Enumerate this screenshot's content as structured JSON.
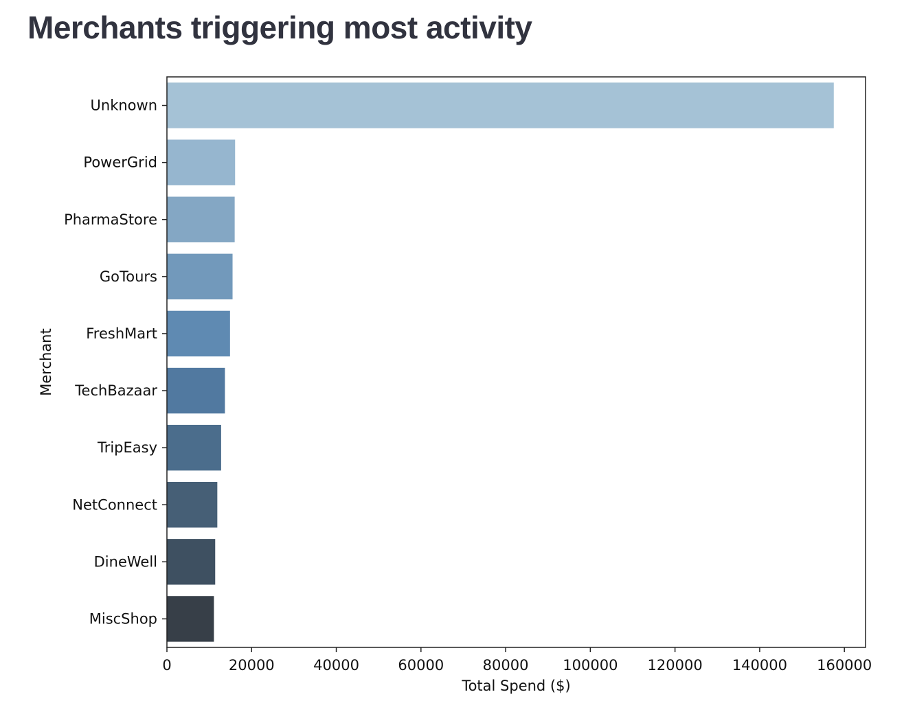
{
  "page": {
    "title": "Merchants triggering most activity"
  },
  "chart_data": {
    "type": "bar",
    "orientation": "horizontal",
    "categories": [
      "Unknown",
      "PowerGrid",
      "PharmaStore",
      "GoTours",
      "FreshMart",
      "TechBazaar",
      "TripEasy",
      "NetConnect",
      "DineWell",
      "MiscShop"
    ],
    "values": [
      157500,
      16100,
      16000,
      15500,
      14900,
      13700,
      12800,
      11900,
      11400,
      11100
    ],
    "xlabel": "Total Spend ($)",
    "ylabel": "Merchant",
    "xlim": [
      0,
      165000
    ],
    "xticks": [
      0,
      20000,
      40000,
      60000,
      80000,
      100000,
      120000,
      140000,
      160000
    ],
    "grid": false,
    "colors": [
      "#a5c2d6",
      "#96b6cf",
      "#84a7c4",
      "#7299bb",
      "#5f8ab2",
      "#5179a0",
      "#4b6d8c",
      "#465f76",
      "#3e5061",
      "#373f48"
    ]
  }
}
